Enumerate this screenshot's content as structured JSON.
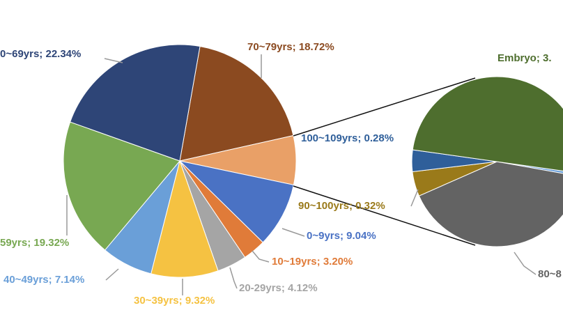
{
  "chart_data": {
    "type": "pie_of_pie",
    "pies": [
      {
        "values": [
          18.72,
          6.8,
          9.04,
          3.2,
          4.12,
          9.32,
          7.14,
          19.32,
          22.34
        ],
        "value_labels": [
          "70~79yrs; 18.72%",
          null,
          "0~9yrs; 9.04%",
          "10~19yrs; 3.20%",
          "20-29yrs; 4.12%",
          "30~39yrs; 9.32%",
          "40~49yrs; 7.14%",
          "59yrs; 19.32%",
          "0~69yrs; 22.34%"
        ],
        "colors": [
          "#8b4a20",
          "#e9a067",
          "#4a72c4",
          "#e07b39",
          "#a5a5a5",
          "#f5c242",
          "#6a9fd8",
          "#78a852",
          "#2e4577"
        ]
      },
      {
        "values": [
          0.04,
          2.76,
          0.32,
          0.28,
          3.4
        ],
        "value_labels": [
          null,
          "80~8",
          "90~100yrs; 0.32%",
          "100~109yrs; 0.28%",
          "Embryo; 3."
        ],
        "colors": [
          "#6a9fd8",
          "#636363",
          "#9a7a1a",
          "#2f5f9a",
          "#4e6e2e"
        ]
      }
    ]
  }
}
